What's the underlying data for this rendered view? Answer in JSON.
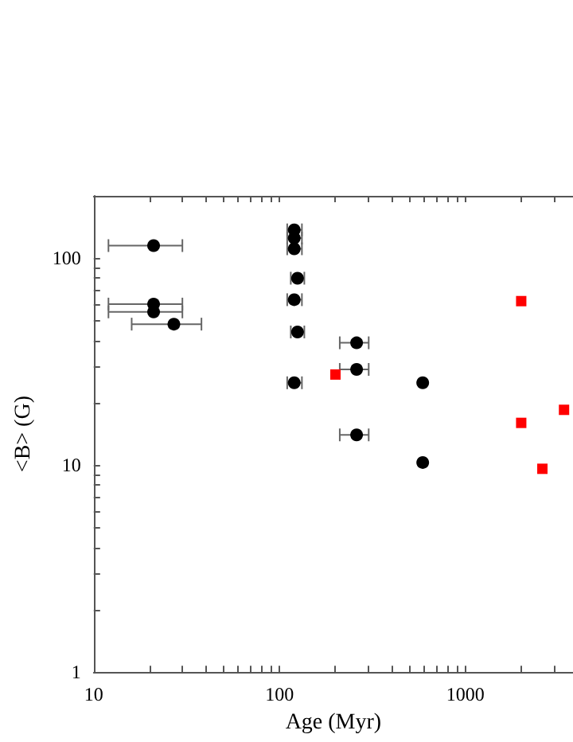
{
  "chart_data": {
    "type": "scatter",
    "xlabel": "Age (Myr)",
    "ylabel": "<B> (G)",
    "log": "xy",
    "grid": false,
    "xlim": [
      10,
      3800
    ],
    "ylim": [
      1,
      200
    ],
    "xticks": [
      10,
      {
        "value": 20,
        "label": null
      },
      {
        "value": 30,
        "label": null
      },
      {
        "value": 40,
        "label": null
      },
      {
        "value": 50,
        "label": null
      },
      {
        "value": 60,
        "label": null
      },
      {
        "value": 70,
        "label": null
      },
      {
        "value": 80,
        "label": null
      },
      {
        "value": 90,
        "label": null
      },
      100,
      {
        "value": 200,
        "label": null
      },
      {
        "value": 300,
        "label": null
      },
      {
        "value": 400,
        "label": null
      },
      {
        "value": 500,
        "label": null
      },
      {
        "value": 600,
        "label": null
      },
      {
        "value": 700,
        "label": null
      },
      {
        "value": 800,
        "label": null
      },
      {
        "value": 900,
        "label": null
      },
      1000,
      {
        "value": 2000,
        "label": null
      },
      {
        "value": 3000,
        "label": null
      }
    ],
    "yticks": [
      1,
      {
        "value": 2,
        "label": null
      },
      {
        "value": 3,
        "label": null
      },
      {
        "value": 4,
        "label": null
      },
      {
        "value": 5,
        "label": null
      },
      {
        "value": 6,
        "label": null
      },
      {
        "value": 7,
        "label": null
      },
      {
        "value": 8,
        "label": null
      },
      {
        "value": 9,
        "label": null
      },
      10,
      {
        "value": 20,
        "label": null
      },
      {
        "value": 30,
        "label": null
      },
      {
        "value": 40,
        "label": null
      },
      {
        "value": 50,
        "label": null
      },
      {
        "value": 60,
        "label": null
      },
      {
        "value": 70,
        "label": null
      },
      {
        "value": 80,
        "label": null
      },
      {
        "value": 90,
        "label": null
      },
      100,
      {
        "value": 200,
        "label": null
      }
    ],
    "series": [
      {
        "color": "#000000",
        "marker": "circle",
        "x": [
          21,
          21,
          21,
          27,
          120,
          120,
          120,
          125,
          120,
          125,
          120,
          260,
          260,
          260,
          590,
          590
        ],
        "values": [
          115,
          60,
          55,
          48,
          137,
          125,
          111,
          80,
          63,
          44,
          25,
          39,
          29,
          14,
          25,
          10.3
        ],
        "xerrors": [
          [
            12,
            30
          ],
          [
            12,
            30
          ],
          [
            12,
            30
          ],
          [
            16,
            38
          ],
          [
            110,
            132
          ],
          [
            110,
            132
          ],
          [
            110,
            132
          ],
          [
            115,
            136
          ],
          [
            110,
            132
          ],
          [
            115,
            136
          ],
          [
            110,
            132
          ],
          [
            211,
            302
          ],
          [
            211,
            302
          ],
          [
            211,
            302
          ],
          null,
          null
        ]
      },
      {
        "color": "#ff0000",
        "marker": "square",
        "x": [
          200,
          2000,
          2000,
          3400,
          2600
        ],
        "values": [
          27.4,
          62,
          16,
          18.5,
          9.6
        ]
      }
    ]
  }
}
